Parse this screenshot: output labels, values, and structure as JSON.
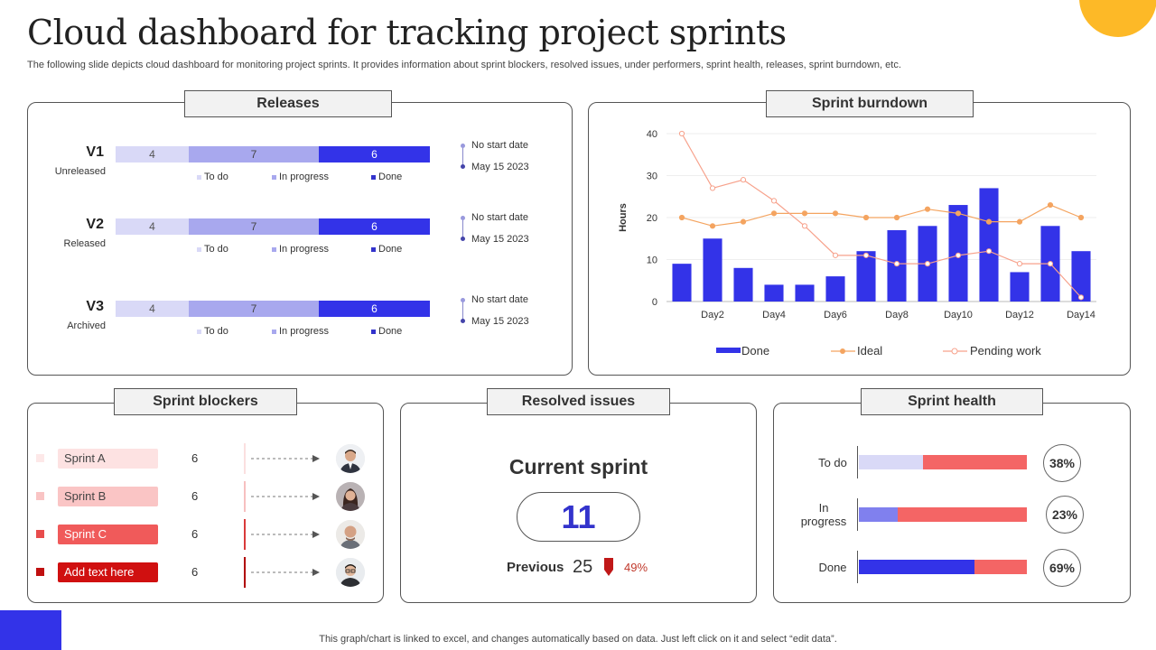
{
  "header": {
    "title": "Cloud dashboard for tracking project sprints",
    "subtitle": "The following slide depicts cloud dashboard for monitoring project sprints. It provides information about sprint blockers, resolved issues, under performers, sprint health, releases, sprint burndown, etc."
  },
  "footer": "This graph/chart is linked to excel,  and changes automatically based on data. Just left click on it and select “edit data”.",
  "colors": {
    "accent_blue": "#3333E8",
    "accent_yellow": "#FDB927",
    "light_blue": "#D9D9F7",
    "mid_blue": "#A8A8EE",
    "red": "#F05A5A",
    "orange": "#F4A460"
  },
  "releases": {
    "title": "Releases",
    "legend": {
      "todo": "To do",
      "in_progress": "In progress",
      "done": "Done"
    },
    "items": [
      {
        "name": "V1",
        "status": "Unreleased",
        "todo": "4",
        "in_progress": "7",
        "done": "6",
        "start": "No start date",
        "date": "May 15 2023"
      },
      {
        "name": "V2",
        "status": "Released",
        "todo": "4",
        "in_progress": "7",
        "done": "6",
        "start": "No start date",
        "date": "May 15 2023"
      },
      {
        "name": "V3",
        "status": "Archived",
        "todo": "4",
        "in_progress": "7",
        "done": "6",
        "start": "No start date",
        "date": "May 15 2023"
      }
    ]
  },
  "burndown": {
    "title": "Sprint burndown"
  },
  "chart_data": {
    "type": "bar",
    "title": "Sprint burndown",
    "ylabel": "Hours",
    "xlabel": "",
    "ylim": [
      0,
      40
    ],
    "yticks": [
      0,
      10,
      20,
      30,
      40
    ],
    "grid": true,
    "legend_position": "bottom",
    "categories": [
      "Day1",
      "Day2",
      "Day3",
      "Day4",
      "Day5",
      "Day6",
      "Day7",
      "Day8",
      "Day9",
      "Day10",
      "Day11",
      "Day12",
      "Day13",
      "Day14"
    ],
    "x_tick_labels": [
      "Day2",
      "Day4",
      "Day6",
      "Day8",
      "Day10",
      "Day12",
      "Day14"
    ],
    "series": [
      {
        "name": "Done",
        "type": "bar",
        "color": "#3333E8",
        "values": [
          9,
          15,
          8,
          4,
          4,
          6,
          12,
          17,
          18,
          23,
          27,
          7,
          18,
          12
        ]
      },
      {
        "name": "Ideal",
        "type": "line",
        "color": "#F4A460",
        "values": [
          20,
          18,
          19,
          21,
          21,
          21,
          20,
          20,
          22,
          21,
          19,
          19,
          23,
          20
        ]
      },
      {
        "name": "Pending work",
        "type": "line",
        "color": "#F7A28C",
        "values": [
          40,
          27,
          29,
          24,
          18,
          11,
          11,
          9,
          9,
          11,
          12,
          9,
          9,
          1
        ]
      }
    ]
  },
  "blockers": {
    "title": "Sprint blockers",
    "rows": [
      {
        "label": "Sprint A",
        "value": "6",
        "bg": "#FDE2E2",
        "fg": "#444444",
        "square": "#FDE8E8",
        "divider": "#FBE0E0",
        "avatar": "man-suit-avatar"
      },
      {
        "label": "Sprint B",
        "value": "6",
        "bg": "#FAC5C5",
        "fg": "#444444",
        "square": "#F9C4C4",
        "divider": "#F7C0C0",
        "avatar": "woman-avatar"
      },
      {
        "label": "Sprint C",
        "value": "6",
        "bg": "#F05A5A",
        "fg": "#ffffff",
        "square": "#E84C4C",
        "divider": "#D93A3A",
        "avatar": "bald-man-avatar"
      },
      {
        "label": "Add text here",
        "value": "6",
        "bg": "#D01010",
        "fg": "#ffffff",
        "square": "#C01010",
        "divider": "#B00000",
        "avatar": "man-glasses-avatar"
      }
    ]
  },
  "resolved": {
    "title": "Resolved issues",
    "current_label": "Current sprint",
    "current_value": "11",
    "previous_label": "Previous",
    "previous_value": "25",
    "change": "49%"
  },
  "health": {
    "title": "Sprint health",
    "rows": [
      {
        "label": "To do",
        "pct": "38%",
        "fill_fraction": 0.38,
        "fill_color": "#D9D9F7"
      },
      {
        "label": "In progress",
        "pct": "23%",
        "fill_fraction": 0.23,
        "fill_color": "#8080EE"
      },
      {
        "label": "Done",
        "pct": "69%",
        "fill_fraction": 0.69,
        "fill_color": "#3333E8"
      }
    ],
    "remainder_color": "#F46565"
  }
}
